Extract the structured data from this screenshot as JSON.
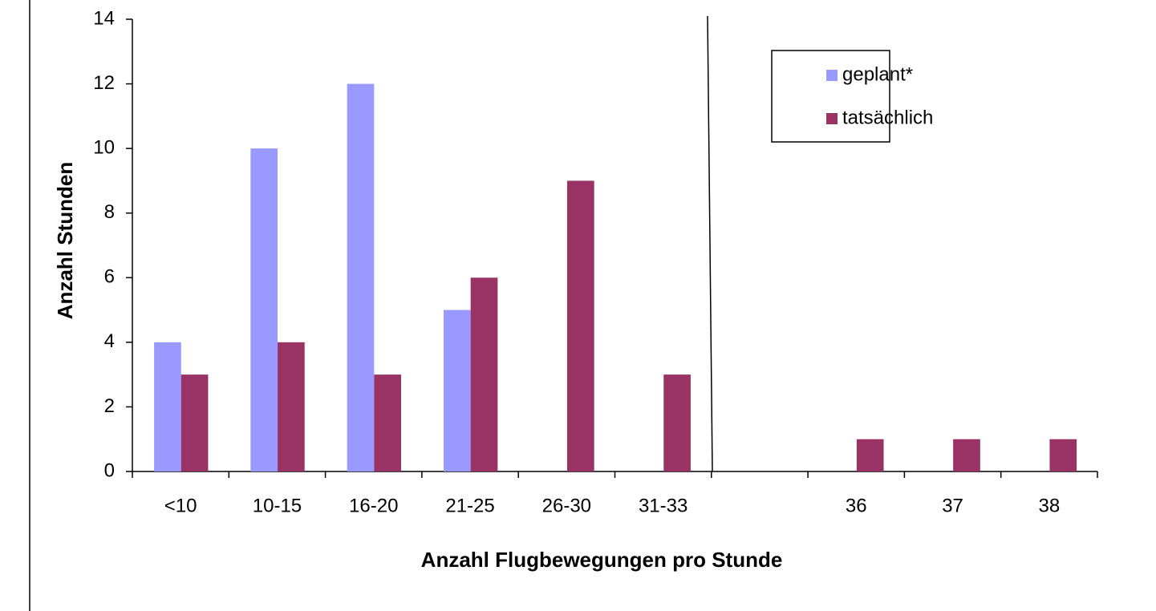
{
  "chart_data": {
    "type": "bar",
    "x_label": "Anzahl Flugbewegungen pro Stunde",
    "y_label": "Anzahl Stunden",
    "categories": [
      "<10",
      "10-15",
      "16-20",
      "21-25",
      "26-30",
      "31-33",
      null,
      "36",
      "37",
      "38"
    ],
    "series": [
      {
        "name": "geplant*",
        "color": "#9999ff",
        "values": [
          4,
          10,
          12,
          5,
          0,
          0,
          0,
          0,
          0,
          0
        ]
      },
      {
        "name": "tatsächlich",
        "color": "#993366",
        "values": [
          3,
          4,
          3,
          6,
          9,
          3,
          0,
          1,
          1,
          1
        ]
      }
    ],
    "ylim": [
      0,
      14
    ],
    "yticks": [
      0,
      2,
      4,
      6,
      8,
      10,
      12,
      14
    ],
    "grid": false,
    "legend": "upper right"
  }
}
